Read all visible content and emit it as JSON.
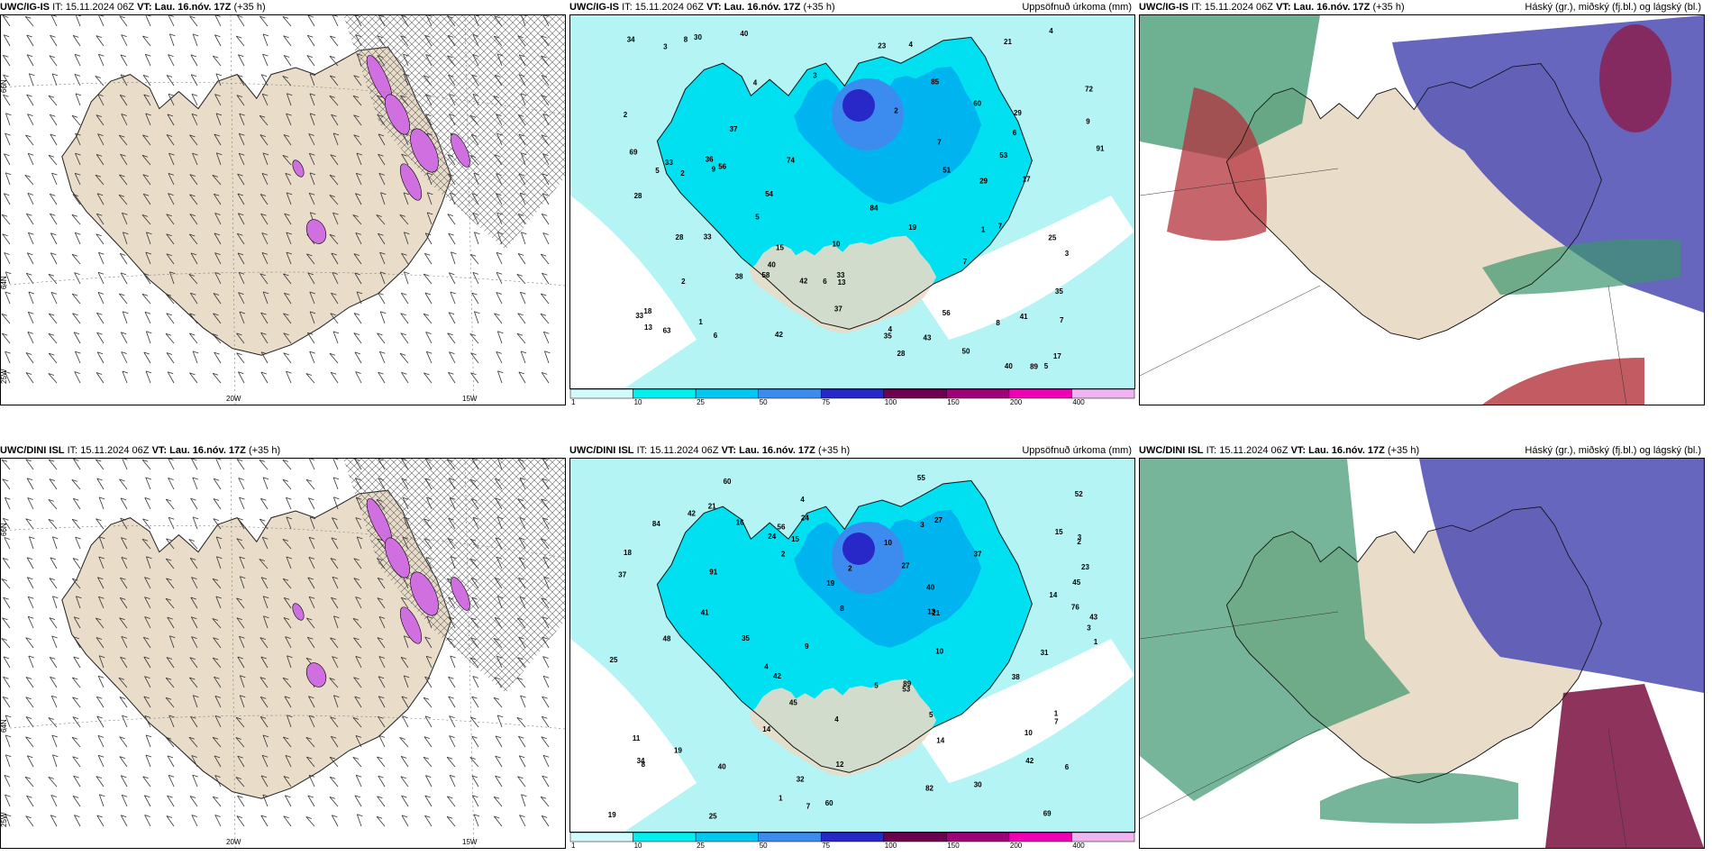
{
  "rows": [
    {
      "model": "UWC/IG-IS",
      "panels": [
        {
          "model": "UWC/IG-IS",
          "it_label": "IT:",
          "it": "15.11.2024 06Z",
          "vt_label": "VT:",
          "vt": "Lau. 16.nóv. 17Z",
          "lead": "(+35 h)",
          "right": ""
        },
        {
          "model": "UWC/IG-IS",
          "it_label": "IT:",
          "it": "15.11.2024 06Z",
          "vt_label": "VT:",
          "vt": "Lau. 16.nóv. 17Z",
          "lead": "(+35 h)",
          "right": "Uppsöfnuð úrkoma (mm)"
        },
        {
          "model": "UWC/IG-IS",
          "it_label": "IT:",
          "it": "15.11.2024 06Z",
          "vt_label": "VT:",
          "vt": "Lau. 16.nóv. 17Z",
          "lead": "(+35 h)",
          "right": "Háský (gr.), miðský (fj.bl.) og lágský (bl.)"
        }
      ],
      "wind_lat_labels": [
        "66N",
        "64N",
        "25W"
      ],
      "wind_lon_labels": [
        "20W",
        "15W"
      ],
      "precip_labels": [
        "10",
        "9",
        "8",
        "7",
        "5",
        "4",
        "6",
        "5",
        "58",
        "29",
        "17",
        "23",
        "34",
        "40",
        "54",
        "56",
        "84",
        "91",
        "72",
        "74",
        "89",
        "56",
        "43",
        "38",
        "41",
        "51",
        "35",
        "18",
        "29",
        "33",
        "40",
        "42",
        "63",
        "35",
        "60",
        "69",
        "33",
        "30",
        "33",
        "42",
        "28",
        "17",
        "25",
        "50",
        "13",
        "13",
        "33",
        "37",
        "40",
        "85",
        "28",
        "53",
        "19",
        "21",
        "9",
        "7",
        "6",
        "3",
        "2",
        "1",
        "4",
        "3",
        "2",
        "1",
        "8",
        "5",
        "4",
        "2",
        "7",
        "15",
        "28",
        "36",
        "37",
        "6",
        "7",
        "4",
        "3",
        "2"
      ]
    },
    {
      "model": "UWC/DINI ISL",
      "panels": [
        {
          "model": "UWC/DINI ISL",
          "it_label": "IT:",
          "it": "15.11.2024 06Z",
          "vt_label": "VT:",
          "vt": "Lau. 16.nóv. 17Z",
          "lead": "(+35 h)",
          "right": ""
        },
        {
          "model": "UWC/DINI ISL",
          "it_label": "IT:",
          "it": "15.11.2024 06Z",
          "vt_label": "VT:",
          "vt": "Lau. 16.nóv. 17Z",
          "lead": "(+35 h)",
          "right": "Uppsöfnuð úrkoma (mm)"
        },
        {
          "model": "UWC/DINI ISL",
          "it_label": "IT:",
          "it": "15.11.2024 06Z",
          "vt_label": "VT:",
          "vt": "Lau. 16.nóv. 17Z",
          "lead": "(+35 h)",
          "right": "Háský (gr.), miðský (fj.bl.) og lágský (bl.)"
        }
      ],
      "wind_lat_labels": [
        "66N",
        "64N",
        "25W"
      ],
      "wind_lon_labels": [
        "20W",
        "15W"
      ],
      "precip_labels": [
        "1",
        "10",
        "12",
        "14",
        "14",
        "14",
        "15",
        "9",
        "8",
        "19",
        "19",
        "45",
        "42",
        "69",
        "84",
        "91",
        "76",
        "89",
        "43",
        "40",
        "41",
        "45",
        "56",
        "40",
        "19",
        "15",
        "37",
        "10",
        "11",
        "52",
        "60",
        "37",
        "35",
        "27",
        "30",
        "32",
        "55",
        "24",
        "53",
        "31",
        "18",
        "60",
        "27",
        "25",
        "21",
        "24",
        "13",
        "42",
        "25",
        "16",
        "48",
        "82",
        "21",
        "42",
        "23",
        "38",
        "10",
        "8",
        "7",
        "6",
        "5",
        "4",
        "3",
        "2",
        "1",
        "34",
        "5",
        "4",
        "3",
        "2",
        "1",
        "3",
        "2",
        "7",
        "4"
      ]
    }
  ],
  "colorbar": {
    "ticks": [
      "1",
      "10",
      "25",
      "50",
      "75",
      "100",
      "150",
      "200",
      "400"
    ],
    "colors": [
      "#d2fafa",
      "#00f0f0",
      "#00c8f0",
      "#3c8cf0",
      "#2828c8",
      "#6e0050",
      "#a00078",
      "#f000b4",
      "#f0b4f0"
    ]
  },
  "colors": {
    "land": "#e9dcc9",
    "precip_bg": "#b4f4f4",
    "cloud_high": "#4b4bb4",
    "cloud_mid": "#3c966e",
    "cloud_low": "#b4323c"
  }
}
